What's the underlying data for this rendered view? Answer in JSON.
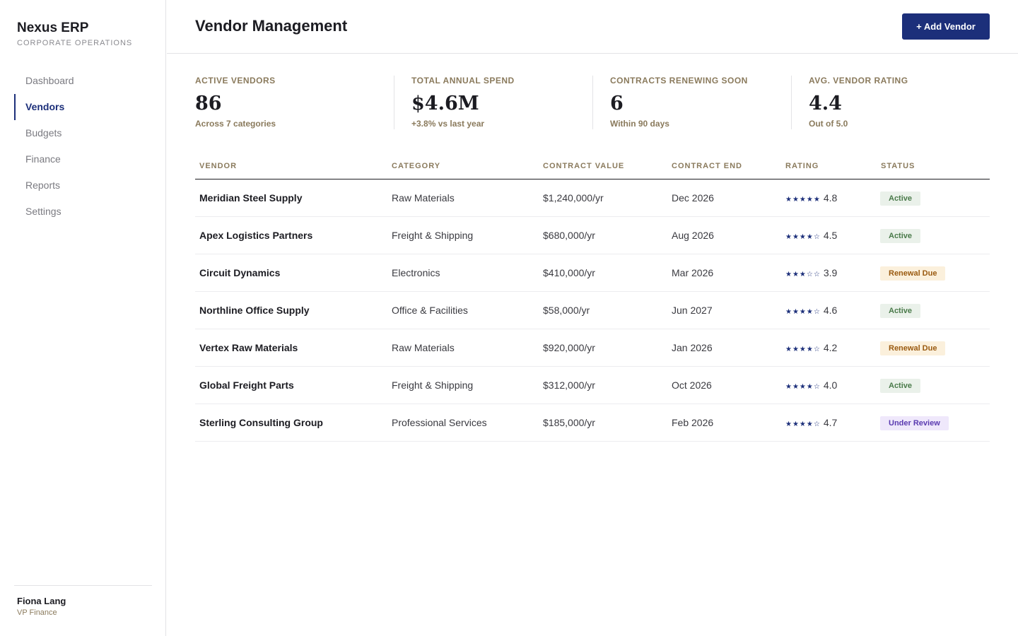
{
  "app": {
    "title": "Nexus ERP",
    "subtitle": "CORPORATE OPERATIONS"
  },
  "nav": {
    "items": [
      {
        "label": "Dashboard",
        "active": false
      },
      {
        "label": "Vendors",
        "active": true
      },
      {
        "label": "Budgets",
        "active": false
      },
      {
        "label": "Finance",
        "active": false
      },
      {
        "label": "Reports",
        "active": false
      },
      {
        "label": "Settings",
        "active": false
      }
    ]
  },
  "user": {
    "name": "Fiona Lang",
    "role": "VP Finance"
  },
  "header": {
    "title": "Vendor Management",
    "add_button": "+ Add Vendor"
  },
  "stats": [
    {
      "label": "ACTIVE VENDORS",
      "value": "86",
      "note": "Across 7 categories"
    },
    {
      "label": "TOTAL ANNUAL SPEND",
      "value": "$4.6M",
      "note": "+3.8% vs last year"
    },
    {
      "label": "CONTRACTS RENEWING SOON",
      "value": "6",
      "note": "Within 90 days"
    },
    {
      "label": "AVG. VENDOR RATING",
      "value": "4.4",
      "note": "Out of 5.0"
    }
  ],
  "table": {
    "columns": [
      "VENDOR",
      "CATEGORY",
      "CONTRACT VALUE",
      "CONTRACT END",
      "RATING",
      "STATUS"
    ],
    "rows": [
      {
        "vendor": "Meridian Steel Supply",
        "category": "Raw Materials",
        "value": "$1,240,000/yr",
        "end": "Dec 2026",
        "stars": "★★★★★",
        "rating": "4.8",
        "status": "Active",
        "status_type": "active"
      },
      {
        "vendor": "Apex Logistics Partners",
        "category": "Freight & Shipping",
        "value": "$680,000/yr",
        "end": "Aug 2026",
        "stars": "★★★★☆",
        "rating": "4.5",
        "status": "Active",
        "status_type": "active"
      },
      {
        "vendor": "Circuit Dynamics",
        "category": "Electronics",
        "value": "$410,000/yr",
        "end": "Mar 2026",
        "stars": "★★★☆☆",
        "rating": "3.9",
        "status": "Renewal Due",
        "status_type": "renewal"
      },
      {
        "vendor": "Northline Office Supply",
        "category": "Office & Facilities",
        "value": "$58,000/yr",
        "end": "Jun 2027",
        "stars": "★★★★☆",
        "rating": "4.6",
        "status": "Active",
        "status_type": "active"
      },
      {
        "vendor": "Vertex Raw Materials",
        "category": "Raw Materials",
        "value": "$920,000/yr",
        "end": "Jan 2026",
        "stars": "★★★★☆",
        "rating": "4.2",
        "status": "Renewal Due",
        "status_type": "renewal"
      },
      {
        "vendor": "Global Freight Parts",
        "category": "Freight & Shipping",
        "value": "$312,000/yr",
        "end": "Oct 2026",
        "stars": "★★★★☆",
        "rating": "4.0",
        "status": "Active",
        "status_type": "active"
      },
      {
        "vendor": "Sterling Consulting Group",
        "category": "Professional Services",
        "value": "$185,000/yr",
        "end": "Feb 2026",
        "stars": "★★★★☆",
        "rating": "4.7",
        "status": "Under Review",
        "status_type": "review"
      }
    ]
  }
}
